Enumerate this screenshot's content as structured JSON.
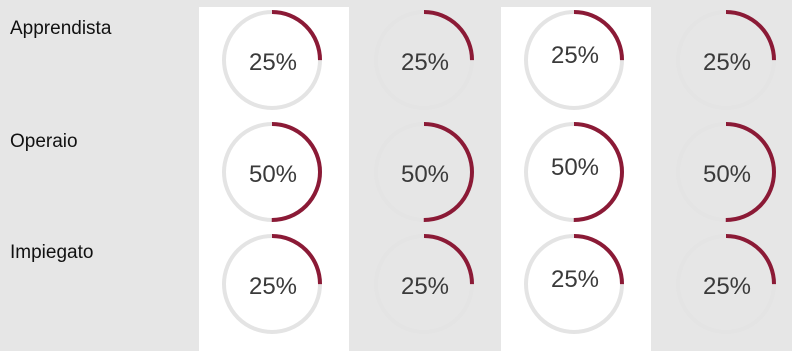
{
  "rows": [
    {
      "label": "Apprendista",
      "values": [
        25,
        25,
        25,
        25
      ],
      "texts": [
        "25%",
        "25%",
        "25%",
        "25%"
      ]
    },
    {
      "label": "Operaio",
      "values": [
        50,
        50,
        50,
        50
      ],
      "texts": [
        "50%",
        "50%",
        "50%",
        "50%"
      ]
    },
    {
      "label": "Impiegato",
      "values": [
        25,
        25,
        25,
        25
      ],
      "texts": [
        "25%",
        "25%",
        "25%",
        "25%"
      ]
    }
  ],
  "colors": {
    "accent": "#8b1a36",
    "track": "#e4e4e4",
    "page_bg": "#e6e6e6",
    "column_bg": "#ffffff"
  }
}
